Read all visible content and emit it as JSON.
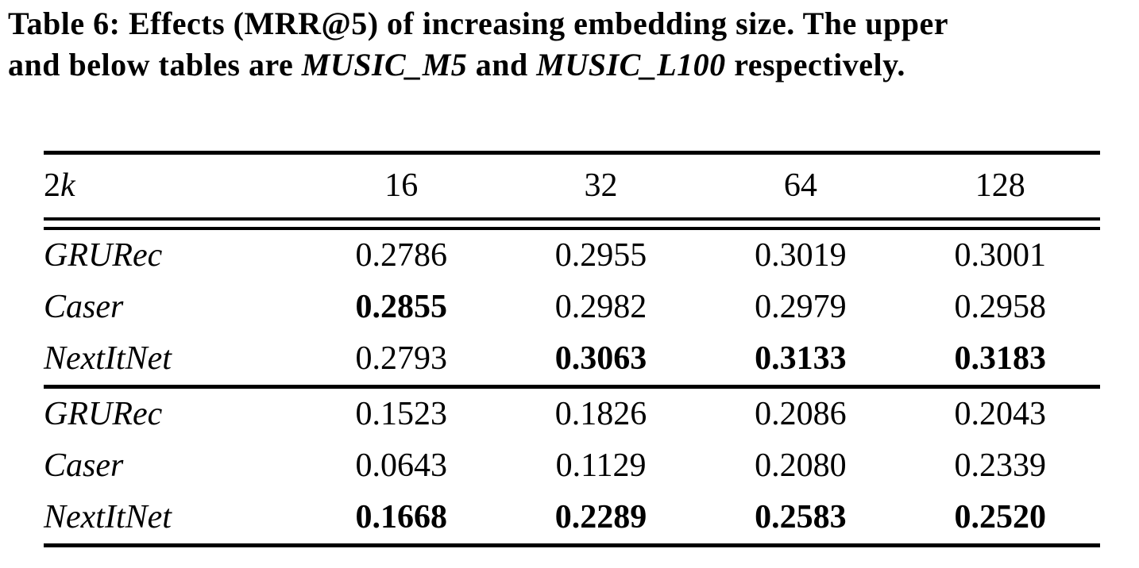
{
  "caption": {
    "line1": "Table 6: Effects (MRR@5) of increasing embedding size. The upper",
    "line2_pre": "and below tables are ",
    "dataset1": "MUSIC_M5",
    "line2_mid": "  and ",
    "dataset2": "MUSIC_L100",
    "line2_post": "  respectively."
  },
  "table": {
    "metric": "MRR@5",
    "header": {
      "label_normal": "2",
      "label_italic": "k",
      "columns": [
        "16",
        "32",
        "64",
        "128"
      ]
    },
    "sections": [
      {
        "dataset": "MUSIC_M5",
        "rows": [
          {
            "label": "GRURec",
            "values": [
              "0.2786",
              "0.2955",
              "0.3019",
              "0.3001"
            ],
            "bold": [
              false,
              false,
              false,
              false
            ]
          },
          {
            "label": "Caser",
            "values": [
              "0.2855",
              "0.2982",
              "0.2979",
              "0.2958"
            ],
            "bold": [
              true,
              false,
              false,
              false
            ]
          },
          {
            "label": "NextItNet",
            "values": [
              "0.2793",
              "0.3063",
              "0.3133",
              "0.3183"
            ],
            "bold": [
              false,
              true,
              true,
              true
            ]
          }
        ]
      },
      {
        "dataset": "MUSIC_L100",
        "rows": [
          {
            "label": "GRURec",
            "values": [
              "0.1523",
              "0.1826",
              "0.2086",
              "0.2043"
            ],
            "bold": [
              false,
              false,
              false,
              false
            ]
          },
          {
            "label": "Caser",
            "values": [
              "0.0643",
              "0.1129",
              "0.2080",
              "0.2339"
            ],
            "bold": [
              false,
              false,
              false,
              false
            ]
          },
          {
            "label": "NextItNet",
            "values": [
              "0.1668",
              "0.2289",
              "0.2583",
              "0.2520"
            ],
            "bold": [
              true,
              true,
              true,
              true
            ]
          }
        ]
      }
    ],
    "colors": {
      "text": "#000000",
      "background": "#ffffff",
      "rule": "#000000"
    }
  }
}
